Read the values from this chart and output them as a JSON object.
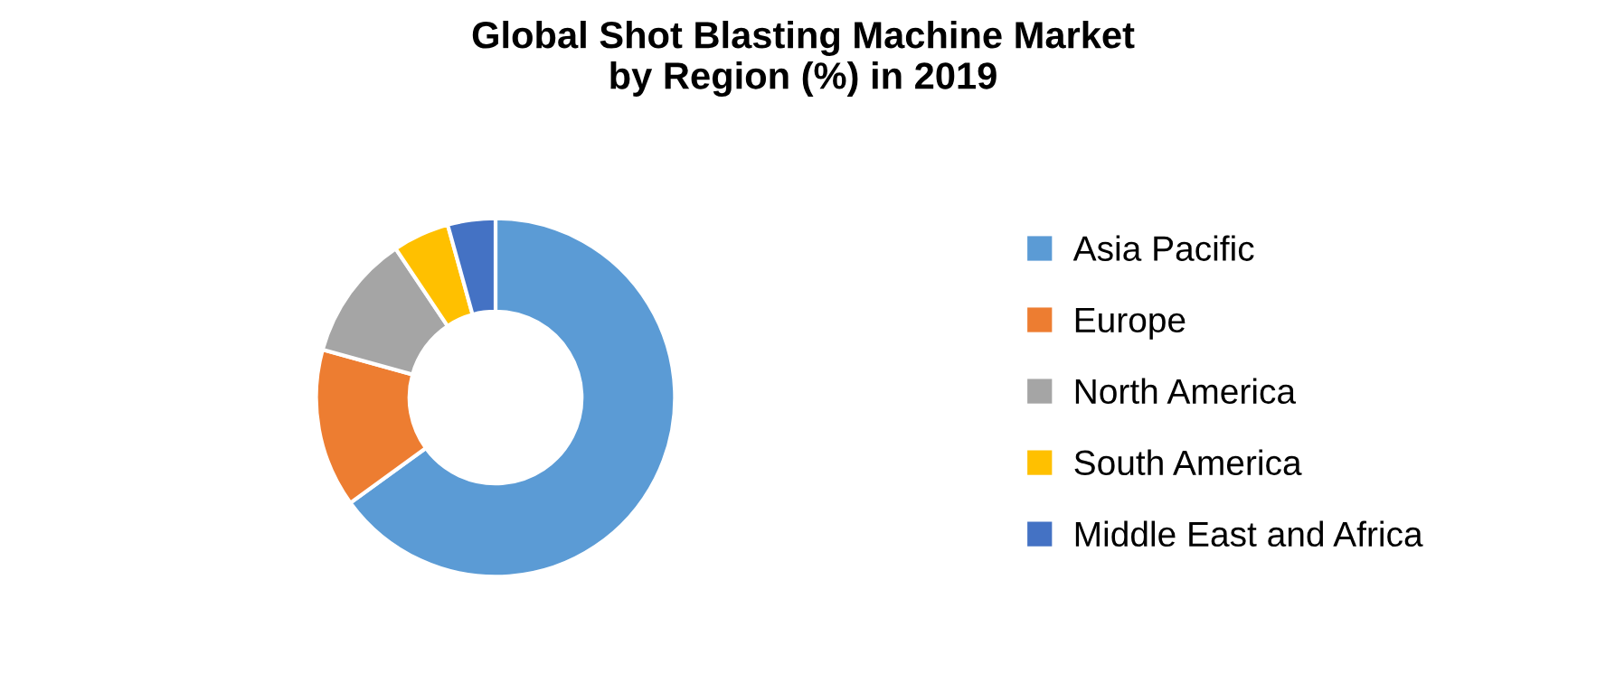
{
  "chart_data": {
    "type": "donut",
    "title": "Global Shot Blasting Machine Market\nby Region (%) in 2019",
    "categories": [
      "Asia Pacific",
      "Europe",
      "North America",
      "South America",
      "Middle East and Africa"
    ],
    "values": [
      65,
      14.3,
      11.3,
      5.1,
      4.3
    ],
    "colors": [
      "#5b9bd5",
      "#ed7d31",
      "#a5a5a5",
      "#ffc000",
      "#4472c4"
    ],
    "legend": "right"
  }
}
